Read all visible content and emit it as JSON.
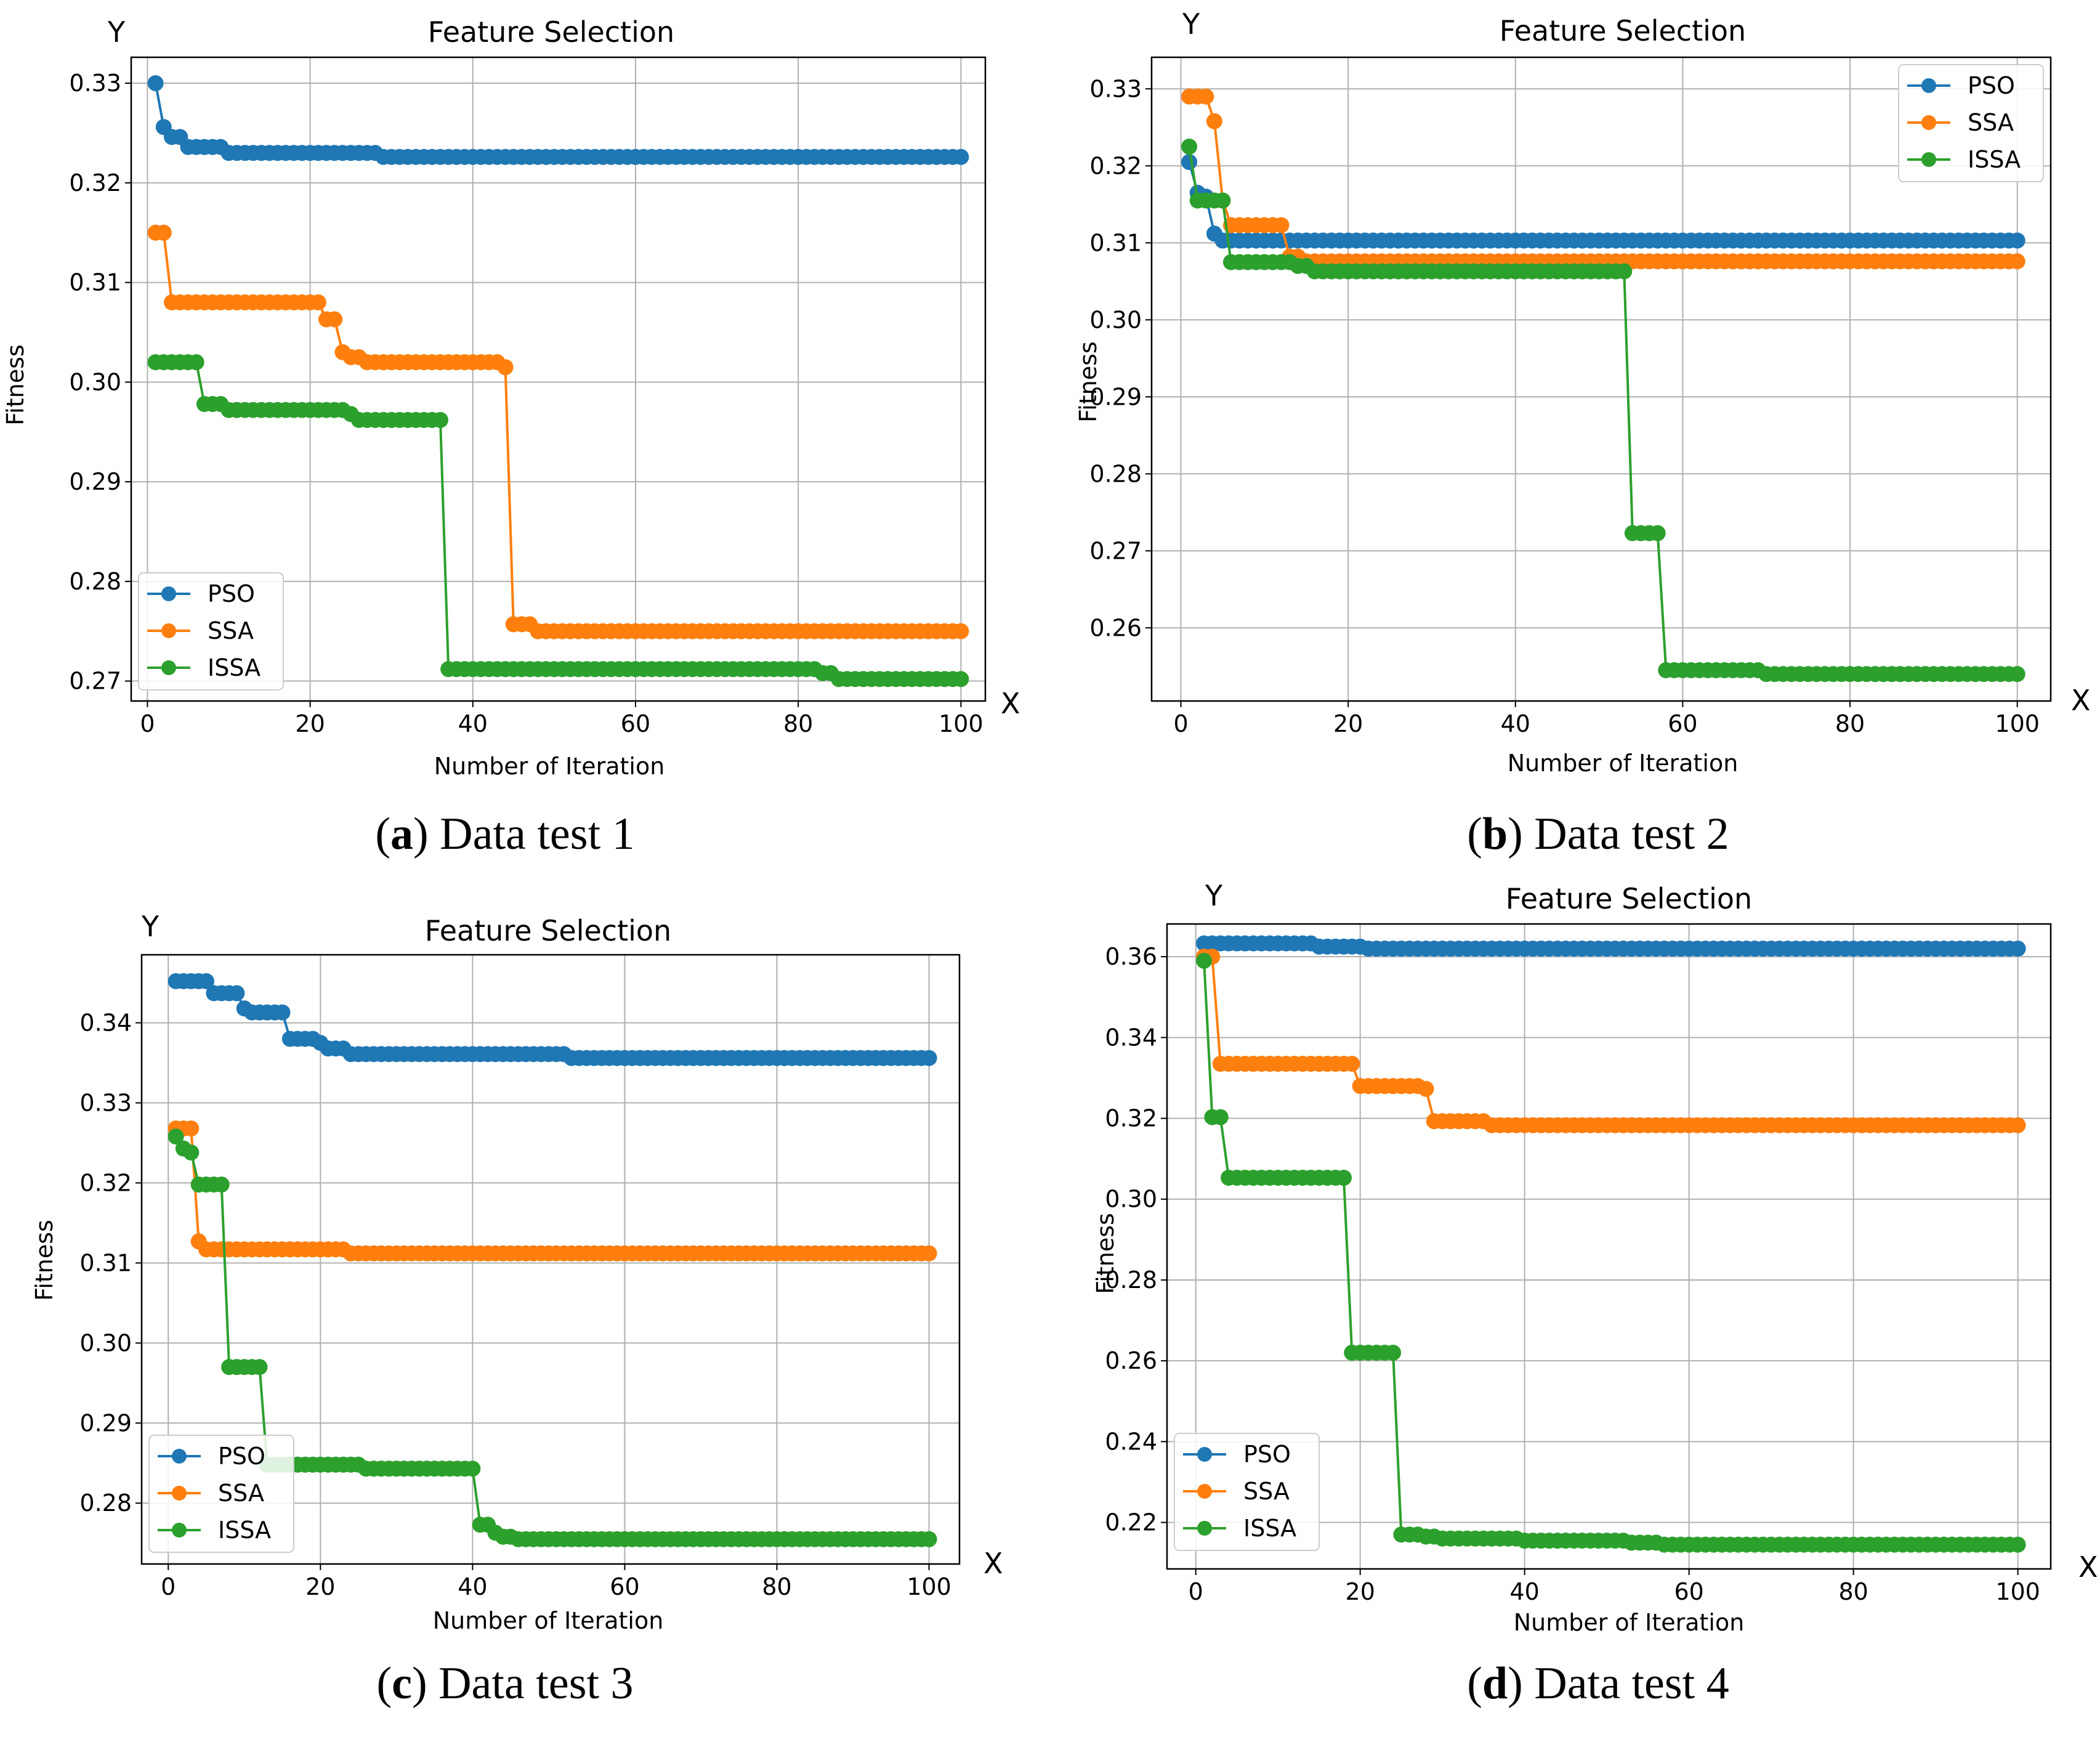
{
  "figure": {
    "series_colors": {
      "PSO": "#1f77b4",
      "SSA": "#ff7f0e",
      "ISSA": "#2ca02c"
    }
  },
  "chart_data": [
    {
      "type": "line",
      "caption_letter": "a",
      "caption_text": ") Data test 1",
      "caption_open": "(",
      "title": "Feature Selection",
      "xlabel": "Number of Iteration",
      "ylabel": "Fitness",
      "x_axis_marker": "X",
      "y_axis_marker": "Y",
      "xlim": [
        -2,
        103
      ],
      "ylim": [
        0.268,
        0.3326
      ],
      "x_ticks": [
        0,
        20,
        40,
        60,
        80,
        100
      ],
      "y_ticks": [
        0.27,
        0.28,
        0.29,
        0.3,
        0.31,
        0.32,
        0.33
      ],
      "y_tick_labels": [
        "0.27",
        "0.28",
        "0.29",
        "0.30",
        "0.31",
        "0.32",
        "0.33"
      ],
      "grid": true,
      "legend_position": "bottom-left",
      "legend": [
        "PSO",
        "SSA",
        "ISSA"
      ],
      "x_range": [
        1,
        100
      ],
      "series": [
        {
          "name": "PSO",
          "steps": [
            [
              1,
              0.33
            ],
            [
              2,
              0.3256
            ],
            [
              3,
              0.3246
            ],
            [
              5,
              0.3236
            ],
            [
              10,
              0.323
            ],
            [
              29,
              0.3226
            ]
          ]
        },
        {
          "name": "SSA",
          "steps": [
            [
              1,
              0.315
            ],
            [
              3,
              0.308
            ],
            [
              22,
              0.3063
            ],
            [
              24,
              0.303
            ],
            [
              25,
              0.3025
            ],
            [
              27,
              0.302
            ],
            [
              44,
              0.3015
            ],
            [
              45,
              0.2757
            ],
            [
              48,
              0.275
            ]
          ]
        },
        {
          "name": "ISSA",
          "steps": [
            [
              1,
              0.302
            ],
            [
              7,
              0.2978
            ],
            [
              10,
              0.2972
            ],
            [
              25,
              0.2968
            ],
            [
              26,
              0.2962
            ],
            [
              37,
              0.2712
            ],
            [
              83,
              0.2708
            ],
            [
              85,
              0.2702
            ]
          ]
        }
      ]
    },
    {
      "type": "line",
      "caption_letter": "b",
      "caption_text": ") Data test 2",
      "caption_open": "(",
      "title": "Feature Selection",
      "xlabel": "Number of Iteration",
      "ylabel": "Fitness",
      "x_axis_marker": "X",
      "y_axis_marker": "Y",
      "xlim": [
        -3.5,
        104
      ],
      "ylim": [
        0.2505,
        0.3341
      ],
      "x_ticks": [
        0,
        20,
        40,
        60,
        80,
        100
      ],
      "y_ticks": [
        0.26,
        0.27,
        0.28,
        0.29,
        0.3,
        0.31,
        0.32,
        0.33
      ],
      "y_tick_labels": [
        "0.26",
        "0.27",
        "0.28",
        "0.29",
        "0.30",
        "0.31",
        "0.32",
        "0.33"
      ],
      "grid": true,
      "legend_position": "top-right",
      "legend": [
        "PSO",
        "SSA",
        "ISSA"
      ],
      "x_range": [
        1,
        100
      ],
      "series": [
        {
          "name": "PSO",
          "steps": [
            [
              1,
              0.3205
            ],
            [
              2,
              0.3165
            ],
            [
              3,
              0.316
            ],
            [
              4,
              0.3112
            ],
            [
              5,
              0.3103
            ]
          ]
        },
        {
          "name": "SSA",
          "steps": [
            [
              1,
              0.329
            ],
            [
              4,
              0.3258
            ],
            [
              5,
              0.3155
            ],
            [
              6,
              0.3123
            ],
            [
              13,
              0.3082
            ],
            [
              15,
              0.3076
            ]
          ]
        },
        {
          "name": "ISSA",
          "steps": [
            [
              1,
              0.3225
            ],
            [
              2,
              0.3155
            ],
            [
              6,
              0.3075
            ],
            [
              14,
              0.307
            ],
            [
              16,
              0.3063
            ],
            [
              54,
              0.2723
            ],
            [
              58,
              0.2545
            ],
            [
              70,
              0.254
            ]
          ]
        }
      ]
    },
    {
      "type": "line",
      "caption_letter": "c",
      "caption_text": ") Data test 3",
      "caption_open": "(",
      "title": "Feature Selection",
      "xlabel": "Number of Iteration",
      "ylabel": "Fitness",
      "x_axis_marker": "X",
      "y_axis_marker": "Y",
      "xlim": [
        -3.5,
        104
      ],
      "ylim": [
        0.2724,
        0.3485
      ],
      "x_ticks": [
        0,
        20,
        40,
        60,
        80,
        100
      ],
      "y_ticks": [
        0.28,
        0.29,
        0.3,
        0.31,
        0.32,
        0.33,
        0.34
      ],
      "y_tick_labels": [
        "0.28",
        "0.29",
        "0.30",
        "0.31",
        "0.32",
        "0.33",
        "0.34"
      ],
      "grid": true,
      "legend_position": "bottom-left",
      "legend": [
        "PSO",
        "SSA",
        "ISSA"
      ],
      "x_range": [
        1,
        100
      ],
      "series": [
        {
          "name": "PSO",
          "steps": [
            [
              1,
              0.3452
            ],
            [
              6,
              0.3437
            ],
            [
              10,
              0.3418
            ],
            [
              11,
              0.3413
            ],
            [
              16,
              0.338
            ],
            [
              20,
              0.3375
            ],
            [
              21,
              0.3368
            ],
            [
              24,
              0.3361
            ],
            [
              53,
              0.3356
            ]
          ]
        },
        {
          "name": "SSA",
          "steps": [
            [
              1,
              0.3268
            ],
            [
              4,
              0.3127
            ],
            [
              5,
              0.3117
            ],
            [
              24,
              0.3112
            ]
          ]
        },
        {
          "name": "ISSA",
          "steps": [
            [
              1,
              0.3258
            ],
            [
              2,
              0.3243
            ],
            [
              3,
              0.3238
            ],
            [
              4,
              0.3198
            ],
            [
              8,
              0.297
            ],
            [
              13,
              0.2848
            ],
            [
              26,
              0.2843
            ],
            [
              41,
              0.2773
            ],
            [
              43,
              0.2763
            ],
            [
              44,
              0.2758
            ],
            [
              46,
              0.2755
            ]
          ]
        }
      ]
    },
    {
      "type": "line",
      "caption_letter": "d",
      "caption_text": ") Data test 4",
      "caption_open": "(",
      "title": "Feature Selection",
      "xlabel": "Number of Iteration",
      "ylabel": "Fitness",
      "x_axis_marker": "X",
      "y_axis_marker": "Y",
      "xlim": [
        -3.5,
        104
      ],
      "ylim": [
        0.2085,
        0.3681
      ],
      "x_ticks": [
        0,
        20,
        40,
        60,
        80,
        100
      ],
      "y_ticks": [
        0.22,
        0.24,
        0.26,
        0.28,
        0.3,
        0.32,
        0.34,
        0.36
      ],
      "y_tick_labels": [
        "0.22",
        "0.24",
        "0.26",
        "0.28",
        "0.30",
        "0.32",
        "0.34",
        "0.36"
      ],
      "grid": true,
      "legend_position": "bottom-left",
      "legend": [
        "PSO",
        "SSA",
        "ISSA"
      ],
      "x_range": [
        1,
        100
      ],
      "series": [
        {
          "name": "PSO",
          "steps": [
            [
              1,
              0.3633
            ],
            [
              15,
              0.3625
            ],
            [
              21,
              0.362
            ]
          ]
        },
        {
          "name": "SSA",
          "steps": [
            [
              1,
              0.36
            ],
            [
              3,
              0.3335
            ],
            [
              20,
              0.328
            ],
            [
              28,
              0.3273
            ],
            [
              29,
              0.3193
            ],
            [
              36,
              0.3183
            ]
          ]
        },
        {
          "name": "ISSA",
          "steps": [
            [
              1,
              0.359
            ],
            [
              2,
              0.3203
            ],
            [
              4,
              0.3053
            ],
            [
              19,
              0.262
            ],
            [
              25,
              0.217
            ],
            [
              28,
              0.2165
            ],
            [
              30,
              0.216
            ],
            [
              40,
              0.2155
            ],
            [
              53,
              0.215
            ],
            [
              57,
              0.2145
            ]
          ]
        }
      ]
    }
  ]
}
